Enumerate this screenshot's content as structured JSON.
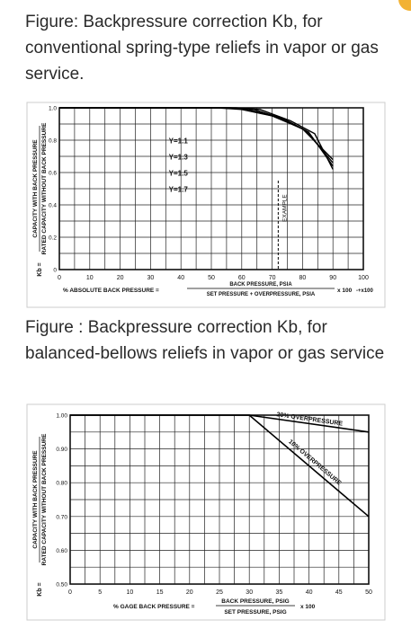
{
  "captions": {
    "figure1": "Figure: Backpressure correction Kb, for conventional spring-type reliefs in vapor or gas service.",
    "figure2": "Figure : Backpressure correction Kb, for balanced-bellows reliefs in vapor or gas service"
  },
  "chart_data": [
    {
      "type": "line",
      "title": "",
      "ylabel_top": "CAPACITY WITH BACK PRESSURE",
      "ylabel_bottom": "RATED CAPACITY WITHOUT BACK PRESSURE",
      "ylabel_prefix": "Kb =",
      "xlabel_prefix": "% ABSOLUTE BACK PRESSURE =",
      "xlabel_num": "BACK PRESSURE, PSIA",
      "xlabel_den": "SET PRESSURE + OVERPRESSURE, PSIA",
      "xlabel_suffix": "x 100",
      "xlabel_tail": "-+x100",
      "xlim": [
        0,
        100
      ],
      "ylim": [
        0,
        1.0
      ],
      "x_ticks": [
        "0",
        "10",
        "20",
        "30",
        "40",
        "50",
        "60",
        "70",
        "80",
        "90",
        "100"
      ],
      "y_ticks": [
        "0",
        "0.2",
        "0.4",
        "0.6",
        "0.8",
        "1.0"
      ],
      "grid": true,
      "series": [
        {
          "name": "Y=1.1",
          "x": [
            0,
            52,
            60,
            70,
            80,
            90
          ],
          "y": [
            1.0,
            1.0,
            0.99,
            0.95,
            0.87,
            0.68
          ]
        },
        {
          "name": "Y=1.3",
          "x": [
            0,
            54,
            62,
            72,
            81,
            90
          ],
          "y": [
            1.0,
            1.0,
            0.99,
            0.94,
            0.86,
            0.66
          ]
        },
        {
          "name": "Y=1.5",
          "x": [
            0,
            56,
            64,
            74,
            82,
            90
          ],
          "y": [
            1.0,
            1.0,
            0.99,
            0.93,
            0.85,
            0.64
          ]
        },
        {
          "name": "Y=1.7",
          "x": [
            0,
            58,
            66,
            76,
            84,
            90
          ],
          "y": [
            1.0,
            1.0,
            0.99,
            0.92,
            0.84,
            0.62
          ]
        }
      ],
      "annotations": [
        {
          "text": "EXAMPLE",
          "x": 72,
          "y_from": 0.55,
          "y_to": 0.0
        }
      ]
    },
    {
      "type": "line",
      "title": "",
      "ylabel_top": "CAPACITY WITH BACK PRESSURE",
      "ylabel_bottom": "RATED CAPACITY WITHOUT BACK PRESSURE",
      "ylabel_prefix": "Kb =",
      "xlabel_prefix": "% GAGE BACK PRESSURE =",
      "xlabel_num": "BACK PRESSURE, PSIG",
      "xlabel_den": "SET PRESSURE, PSIG",
      "xlabel_suffix": "x 100",
      "xlim": [
        0,
        50
      ],
      "ylim": [
        0.5,
        1.0
      ],
      "x_ticks": [
        "0",
        "5",
        "10",
        "15",
        "20",
        "25",
        "30",
        "35",
        "40",
        "45",
        "50"
      ],
      "y_ticks": [
        "0.50",
        "0.60",
        "0.70",
        "0.80",
        "0.90",
        "1.00"
      ],
      "grid": true,
      "series": [
        {
          "name": "20% OVERPRESSURE",
          "x": [
            0,
            30,
            50
          ],
          "y": [
            1.0,
            1.0,
            0.95
          ]
        },
        {
          "name": "10% OVERPRESSURE",
          "x": [
            0,
            30,
            50
          ],
          "y": [
            1.0,
            1.0,
            0.7
          ]
        }
      ]
    }
  ]
}
